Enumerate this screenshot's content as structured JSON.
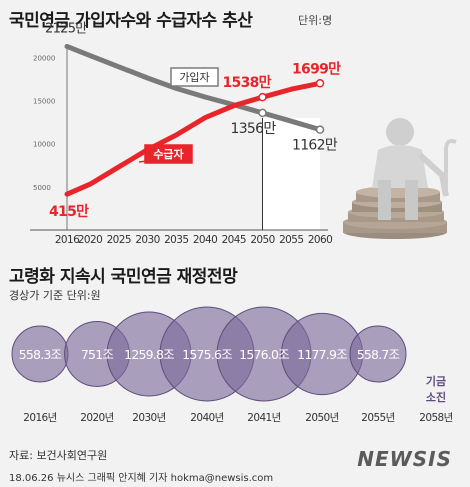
{
  "header": {
    "title": "국민연금 가입자수와 수급자수 추산",
    "unit": "단위:명"
  },
  "chart_data": [
    {
      "type": "line",
      "x": [
        "2016",
        "2020",
        "2025",
        "2030",
        "2035",
        "2040",
        "2045",
        "2050",
        "2055",
        "2060"
      ],
      "x_values": [
        2016,
        2020,
        2025,
        2030,
        2035,
        2040,
        2045,
        2050,
        2055,
        2060
      ],
      "ylim": [
        0,
        22000
      ],
      "yticks": [
        0,
        5000,
        10000,
        15000,
        20000
      ],
      "ytick_labels": [
        "",
        "5000",
        "10000",
        "15000",
        "20000"
      ],
      "series": [
        {
          "name": "가입자",
          "color": "#7a7a7a",
          "values": [
            21250,
            20200,
            18900,
            17600,
            16400,
            15400,
            14500,
            13560,
            12600,
            11620
          ]
        },
        {
          "name": "수급자",
          "color": "#e8252a",
          "values": [
            4150,
            5300,
            7300,
            9300,
            11000,
            13000,
            14400,
            15380,
            16300,
            16990
          ]
        }
      ],
      "annotations": [
        {
          "text": "2125만",
          "series": 0,
          "index": 0,
          "color": "#333333"
        },
        {
          "text": "1356만",
          "series": 0,
          "index": 7,
          "color": "#333333"
        },
        {
          "text": "1162만",
          "series": 0,
          "index": 9,
          "color": "#333333"
        },
        {
          "text": "415만",
          "series": 1,
          "index": 0,
          "color": "#e8252a"
        },
        {
          "text": "1538만",
          "series": 1,
          "index": 7,
          "color": "#e8252a"
        },
        {
          "text": "1699만",
          "series": 1,
          "index": 9,
          "color": "#e8252a"
        }
      ],
      "highlight_range": [
        2050,
        2060
      ],
      "grid": false
    },
    {
      "title": "고령화 지속시 국민연금 재정전망",
      "subtitle": "경상가 기준 단위:원",
      "type": "bubble",
      "categories": [
        "2016년",
        "2020년",
        "2030년",
        "2040년",
        "2041년",
        "2050년",
        "2055년",
        "2058년"
      ],
      "values": [
        558.3,
        751,
        1259.8,
        1575.6,
        1576.0,
        1177.9,
        558.7,
        0
      ],
      "value_labels": [
        "558.3조",
        "751조",
        "1259.8조",
        "1575.6조",
        "1576.0조",
        "1177.9조",
        "558.7조",
        ""
      ],
      "exhausted_label": [
        "기금",
        "소진"
      ],
      "color": "#7d6b9b"
    }
  ],
  "footer": {
    "source": "자료: 보건사회연구원",
    "credit": "18.06.26 뉴시스 그래픽 안지혜 기자 hokma@newsis.com",
    "logo": "NEWSIS"
  }
}
